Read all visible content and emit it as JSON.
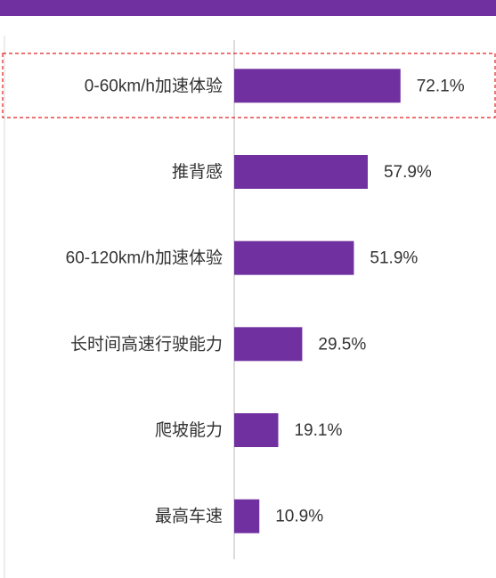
{
  "chart_data": {
    "type": "bar",
    "orientation": "horizontal",
    "categories": [
      "0-60km/h加速体验",
      "推背感",
      "60-120km/h加速体验",
      "长时间高速行驶能力",
      "爬坡能力",
      "最高车速"
    ],
    "values": [
      72.1,
      57.9,
      51.9,
      29.5,
      19.1,
      10.9
    ],
    "value_labels": [
      "72.1%",
      "57.9%",
      "51.9%",
      "29.5%",
      "19.1%",
      "10.9%"
    ],
    "color": "#7030a0",
    "xlim": [
      0,
      100
    ]
  }
}
